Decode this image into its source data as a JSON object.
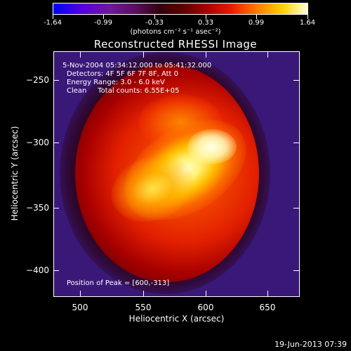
{
  "colorbar": {
    "ticks": [
      "-1.64",
      "-0.99",
      "-0.33",
      "0.33",
      "0.99",
      "1.64"
    ],
    "units": "(photons cm⁻² s⁻¹ asec⁻²)"
  },
  "title": "Reconstructed RHESSI Image",
  "info": {
    "time": "5-Nov-2004 05:34:12.000 to 05:41:32.000",
    "detectors": "Detectors: 4F 5F 6F 7F 8F, Att 0",
    "energy": "Energy Range: 3.0 - 6.0 keV",
    "clean": "Clean     Total counts: 6.55E+05",
    "peak": "Position of Peak = [600,-313]"
  },
  "axes": {
    "xlabel": "Heliocentric X (arcsec)",
    "ylabel": "Heliocentric Y (arcsec)",
    "xticks": [
      "500",
      "550",
      "600",
      "650"
    ],
    "yticks": [
      "−250",
      "−300",
      "−350",
      "−400"
    ]
  },
  "footer": {
    "date": "19-Jun-2013 07:39"
  }
}
